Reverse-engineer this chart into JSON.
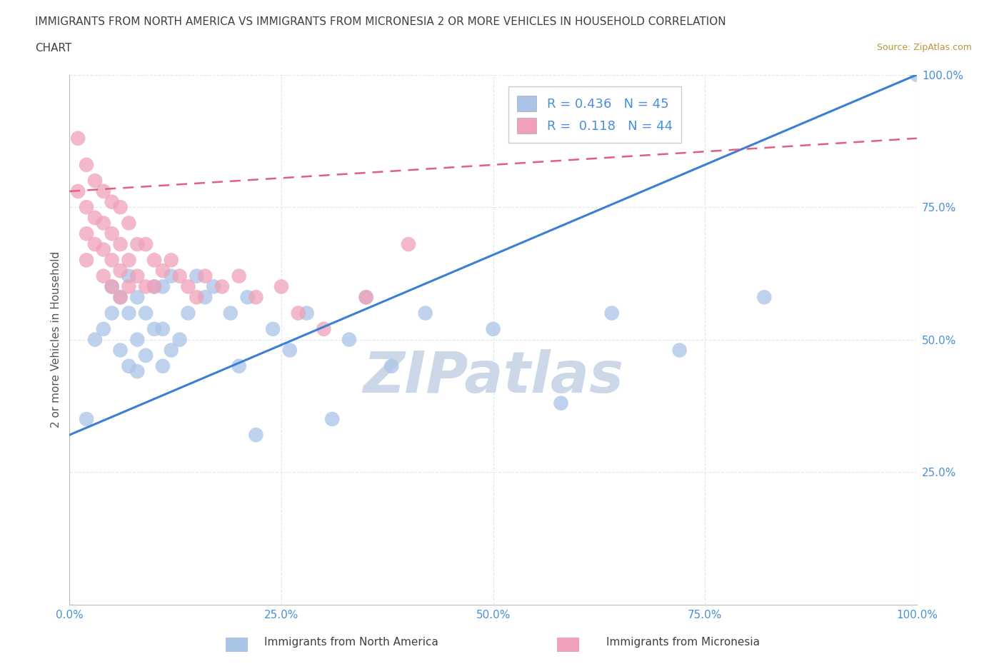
{
  "title_line1": "IMMIGRANTS FROM NORTH AMERICA VS IMMIGRANTS FROM MICRONESIA 2 OR MORE VEHICLES IN HOUSEHOLD CORRELATION",
  "title_line2": "CHART",
  "source": "Source: ZipAtlas.com",
  "ylabel": "2 or more Vehicles in Household",
  "xlim": [
    0.0,
    1.0
  ],
  "ylim": [
    0.0,
    1.0
  ],
  "xtick_labels": [
    "0.0%",
    "",
    "25.0%",
    "",
    "50.0%",
    "",
    "75.0%",
    "",
    "100.0%"
  ],
  "xtick_values": [
    0.0,
    0.125,
    0.25,
    0.375,
    0.5,
    0.625,
    0.75,
    0.875,
    1.0
  ],
  "xtick_display": [
    "0.0%",
    "25.0%",
    "50.0%",
    "75.0%",
    "100.0%"
  ],
  "xtick_display_vals": [
    0.0,
    0.25,
    0.5,
    0.75,
    1.0
  ],
  "ytick_labels": [
    "25.0%",
    "50.0%",
    "75.0%",
    "100.0%"
  ],
  "ytick_values": [
    0.25,
    0.5,
    0.75,
    1.0
  ],
  "r_north_america": 0.436,
  "n_north_america": 45,
  "r_micronesia": 0.118,
  "n_micronesia": 44,
  "color_north_america": "#aac4e8",
  "color_micronesia": "#f0a0b8",
  "line_color_north_america": "#3a7fd5",
  "line_color_micronesia": "#e06080",
  "watermark_color": "#ccd8e8",
  "title_color": "#404040",
  "source_color": "#b8963c",
  "axis_label_color": "#4a90d9",
  "background_color": "#ffffff",
  "grid_color": "#e0e8f0",
  "figsize": [
    14.06,
    9.3
  ],
  "dpi": 100,
  "na_x": [
    0.02,
    0.03,
    0.04,
    0.05,
    0.05,
    0.06,
    0.06,
    0.07,
    0.07,
    0.07,
    0.08,
    0.08,
    0.08,
    0.09,
    0.09,
    0.1,
    0.1,
    0.11,
    0.11,
    0.11,
    0.12,
    0.12,
    0.13,
    0.14,
    0.15,
    0.16,
    0.17,
    0.19,
    0.2,
    0.21,
    0.22,
    0.24,
    0.26,
    0.28,
    0.31,
    0.33,
    0.35,
    0.38,
    0.42,
    0.5,
    0.58,
    0.64,
    0.72,
    0.82,
    1.0
  ],
  "na_y": [
    0.35,
    0.5,
    0.52,
    0.55,
    0.6,
    0.48,
    0.58,
    0.45,
    0.55,
    0.62,
    0.44,
    0.5,
    0.58,
    0.47,
    0.55,
    0.52,
    0.6,
    0.45,
    0.52,
    0.6,
    0.48,
    0.62,
    0.5,
    0.55,
    0.62,
    0.58,
    0.6,
    0.55,
    0.45,
    0.58,
    0.32,
    0.52,
    0.48,
    0.55,
    0.35,
    0.5,
    0.58,
    0.45,
    0.55,
    0.52,
    0.38,
    0.55,
    0.48,
    0.58,
    1.0
  ],
  "mic_x": [
    0.01,
    0.01,
    0.02,
    0.02,
    0.02,
    0.02,
    0.03,
    0.03,
    0.03,
    0.04,
    0.04,
    0.04,
    0.04,
    0.05,
    0.05,
    0.05,
    0.05,
    0.06,
    0.06,
    0.06,
    0.06,
    0.07,
    0.07,
    0.07,
    0.08,
    0.08,
    0.09,
    0.09,
    0.1,
    0.1,
    0.11,
    0.12,
    0.13,
    0.14,
    0.15,
    0.16,
    0.18,
    0.2,
    0.22,
    0.25,
    0.27,
    0.3,
    0.35,
    0.4
  ],
  "mic_y": [
    0.88,
    0.78,
    0.83,
    0.75,
    0.7,
    0.65,
    0.8,
    0.73,
    0.68,
    0.78,
    0.72,
    0.67,
    0.62,
    0.76,
    0.7,
    0.65,
    0.6,
    0.75,
    0.68,
    0.63,
    0.58,
    0.72,
    0.65,
    0.6,
    0.68,
    0.62,
    0.68,
    0.6,
    0.65,
    0.6,
    0.63,
    0.65,
    0.62,
    0.6,
    0.58,
    0.62,
    0.6,
    0.62,
    0.58,
    0.6,
    0.55,
    0.52,
    0.58,
    0.68
  ],
  "na_line_x0": 0.0,
  "na_line_y0": 0.32,
  "na_line_x1": 1.0,
  "na_line_y1": 1.0,
  "mic_line_x0": 0.0,
  "mic_line_y0": 0.78,
  "mic_line_x1": 1.0,
  "mic_line_y1": 0.88
}
